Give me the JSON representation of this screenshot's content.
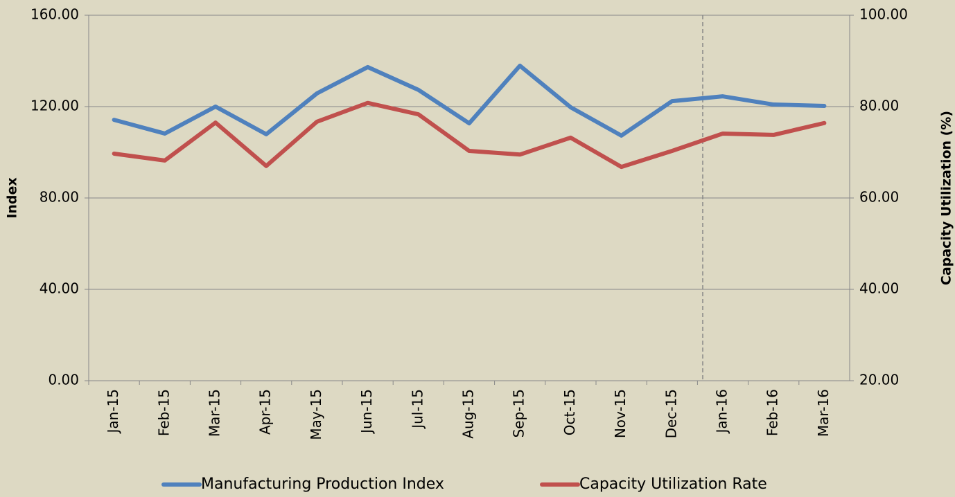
{
  "chart_data": {
    "type": "line",
    "categories": [
      "Jan-15",
      "Feb-15",
      "Mar-15",
      "Apr-15",
      "May-15",
      "Jun-15",
      "Jul-15",
      "Aug-15",
      "Sep-15",
      "Oct-15",
      "Nov-15",
      "Dec-15",
      "Jan-16",
      "Feb-16",
      "Mar-16"
    ],
    "series": [
      {
        "name": "Manufacturing Production Index",
        "color": "#4f81bd",
        "values": [
          114.2,
          108.2,
          120.0,
          107.9,
          125.8,
          137.3,
          127.3,
          112.7,
          137.9,
          119.7,
          107.3,
          122.4,
          124.5,
          120.9,
          120.3
        ]
      },
      {
        "name": "Capacity Utilization Rate",
        "color": "#c0504d",
        "axis": "y2",
        "values": [
          69.7,
          68.2,
          76.5,
          67.0,
          76.7,
          80.8,
          78.3,
          70.3,
          69.5,
          73.2,
          66.8,
          70.3,
          74.1,
          73.8,
          76.4
        ]
      }
    ],
    "y_label": "Index",
    "y2_label": "Capacity Utilization (%)",
    "ylim": [
      0,
      160
    ],
    "yticks": [
      {
        "value": 0,
        "label": "0.00"
      },
      {
        "value": 40,
        "label": "40.00"
      },
      {
        "value": 80,
        "label": "80.00"
      },
      {
        "value": 120,
        "label": "120.00"
      },
      {
        "value": 160,
        "label": "160.00"
      }
    ],
    "y2lim": [
      20,
      100
    ],
    "y2ticks": [
      {
        "value": 20,
        "label": "20.00"
      },
      {
        "value": 40,
        "label": "40.00"
      },
      {
        "value": 60,
        "label": "60.00"
      },
      {
        "value": 80,
        "label": "80.00"
      },
      {
        "value": 100,
        "label": "100.00"
      }
    ],
    "grid": true,
    "legend": "bottom"
  }
}
